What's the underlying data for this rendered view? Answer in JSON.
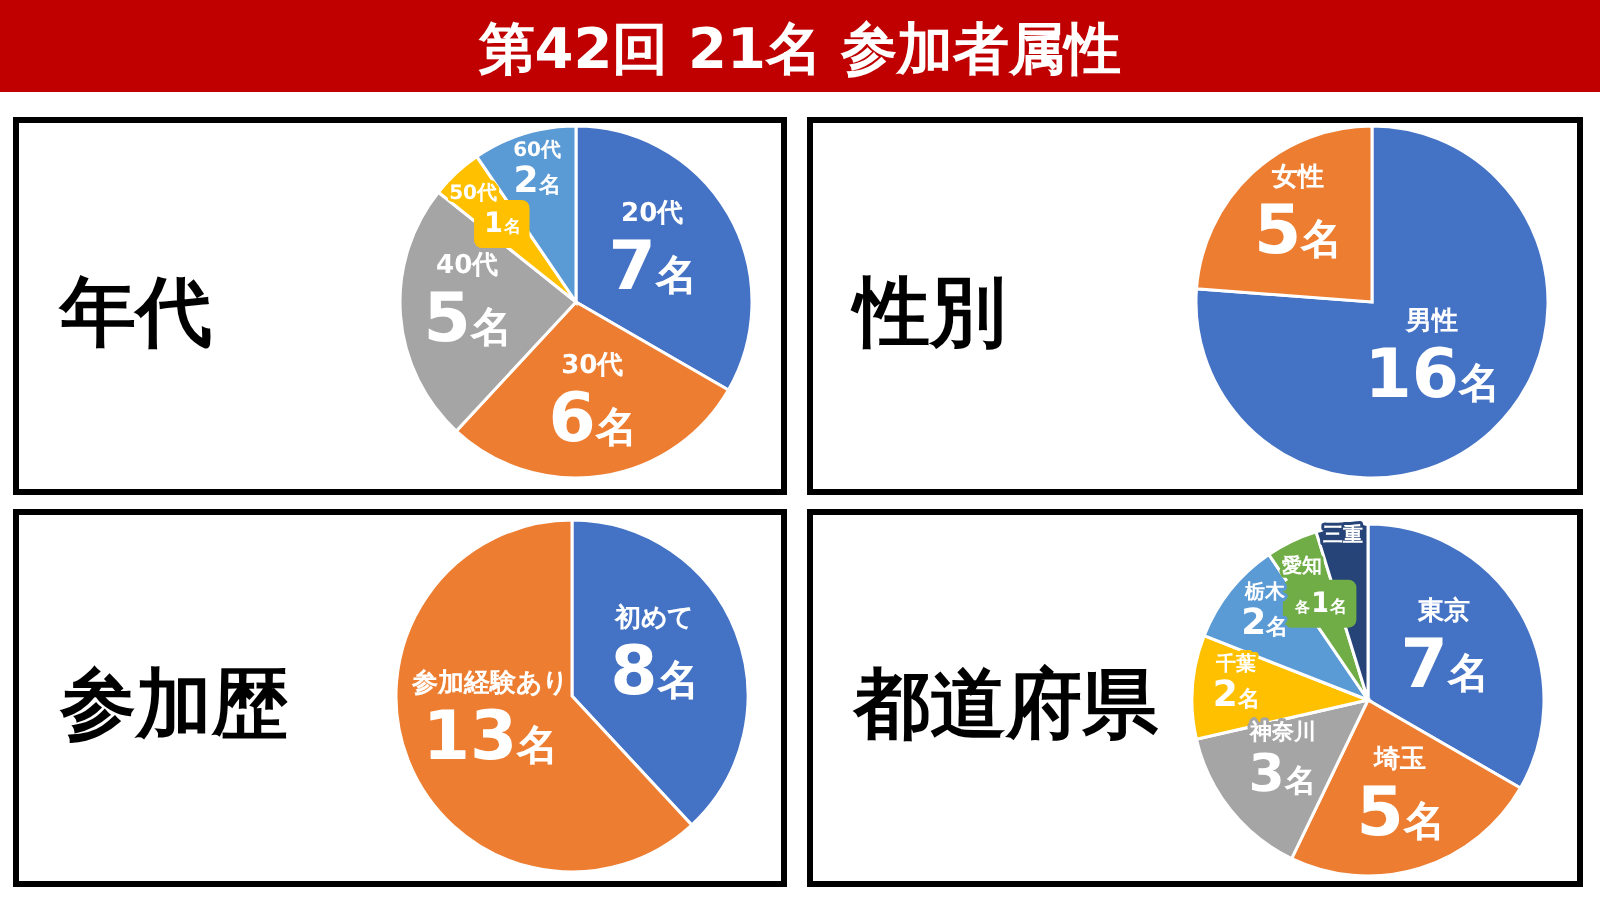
{
  "chart_data": [
    {
      "type": "pie",
      "title": "年代",
      "annotations": [
        "第42回 21名 参加者属性"
      ],
      "categories": [
        "20代",
        "30代",
        "40代",
        "50代",
        "60代"
      ],
      "values": [
        7,
        6,
        5,
        1,
        2
      ],
      "value_labels": [
        "7名",
        "6名",
        "5名",
        "1名",
        "2名"
      ],
      "colors": [
        "#4472c4",
        "#ed7d31",
        "#a5a5a5",
        "#ffc000",
        "#5b9bd5"
      ]
    },
    {
      "type": "pie",
      "title": "性別",
      "categories": [
        "男性",
        "女性"
      ],
      "values": [
        16,
        5
      ],
      "value_labels": [
        "16名",
        "5名"
      ],
      "colors": [
        "#4472c4",
        "#ed7d31"
      ]
    },
    {
      "type": "pie",
      "title": "参加歴",
      "categories": [
        "初めて",
        "参加経験あり"
      ],
      "values": [
        8,
        13
      ],
      "value_labels": [
        "8名",
        "13名"
      ],
      "colors": [
        "#4472c4",
        "#ed7d31"
      ]
    },
    {
      "type": "pie",
      "title": "都道府県",
      "categories": [
        "東京",
        "埼玉",
        "神奈川",
        "千葉",
        "栃木",
        "愛知",
        "三重"
      ],
      "values": [
        7,
        5,
        3,
        2,
        2,
        1,
        1
      ],
      "value_labels": [
        "7名",
        "5名",
        "3名",
        "2名",
        "2名",
        "各1名",
        null
      ],
      "colors": [
        "#4472c4",
        "#ed7d31",
        "#a5a5a5",
        "#ffc000",
        "#5b9bd5",
        "#70ad47",
        "#264478"
      ]
    }
  ]
}
